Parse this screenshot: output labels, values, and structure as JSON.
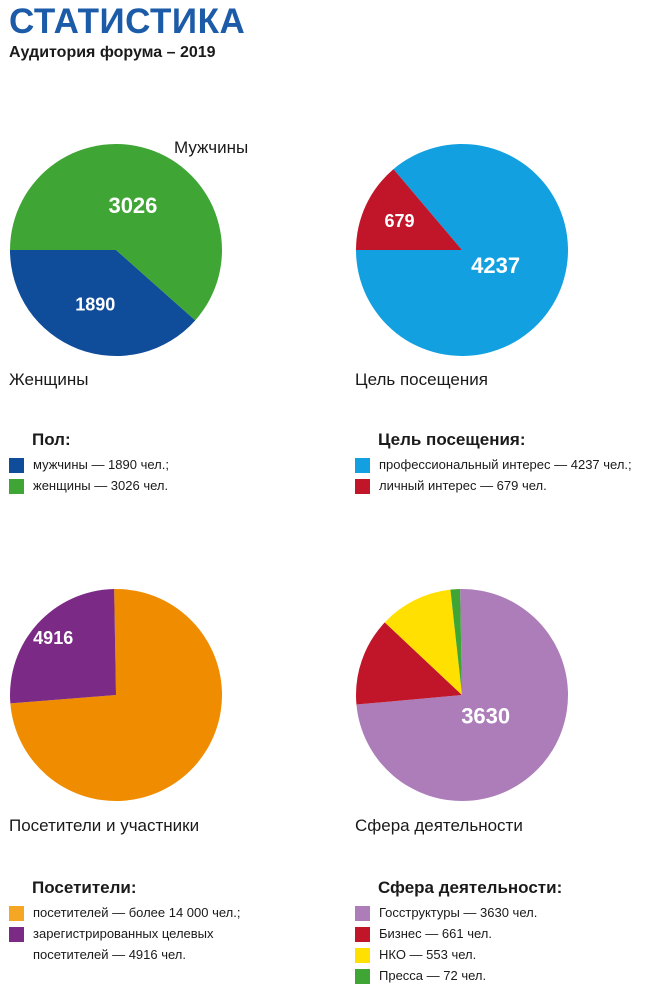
{
  "header": {
    "title": "СТАТИСТИКА",
    "subtitle": "Аудитория форума – 2019"
  },
  "chart_data": [
    {
      "type": "pie",
      "categories": [
        "Мужчины",
        "Женщины"
      ],
      "values": [
        1890,
        3026
      ],
      "colors": [
        "#0f4c9a",
        "#3fa535"
      ],
      "slice_labels": [
        "1890",
        "3026"
      ],
      "captions": [
        "Мужчины",
        "Женщины"
      ],
      "legend": {
        "title": "Пол:",
        "items": [
          "мужчины — 1890 чел.;",
          "женщины — 3026 чел."
        ]
      }
    },
    {
      "type": "pie",
      "categories": [
        "профессиональный интерес",
        "личный интерес"
      ],
      "values": [
        4237,
        679
      ],
      "colors": [
        "#12a0e0",
        "#c1162a"
      ],
      "slice_labels": [
        "4237",
        "679"
      ],
      "captions": [
        "Цель посещения"
      ],
      "legend": {
        "title": "Цель посещения:",
        "items": [
          "профессиональный интерес — 4237 чел.;",
          "личный интерес — 679 чел."
        ]
      }
    },
    {
      "type": "pie",
      "categories": [
        "посетителей",
        "зарегистрированных целевых посетителей"
      ],
      "values": [
        14000,
        4916
      ],
      "colors": [
        "#f08c00",
        "#7b2a86"
      ],
      "slice_labels": [
        "",
        "4916"
      ],
      "captions": [
        "Посетители и участники"
      ],
      "legend": {
        "title": "Посетители:",
        "items": [
          "посетителей — более 14 000 чел.;",
          "зарегистрированных целевых посетителей — 4916 чел."
        ]
      }
    },
    {
      "type": "pie",
      "categories": [
        "Госструктуры",
        "Бизнес",
        "НКО",
        "Пресса"
      ],
      "values": [
        3630,
        661,
        553,
        72
      ],
      "colors": [
        "#ac7db8",
        "#c1162a",
        "#ffe000",
        "#3fa535"
      ],
      "slice_labels": [
        "3630",
        "",
        "",
        ""
      ],
      "captions": [
        "Сфера деятельности"
      ],
      "legend": {
        "title": "Сфера деятельности:",
        "items": [
          "Госструктуры — 3630 чел.",
          "Бизнес — 661 чел.",
          "НКО — 553 чел.",
          "Пресса — 72 чел."
        ]
      }
    }
  ]
}
